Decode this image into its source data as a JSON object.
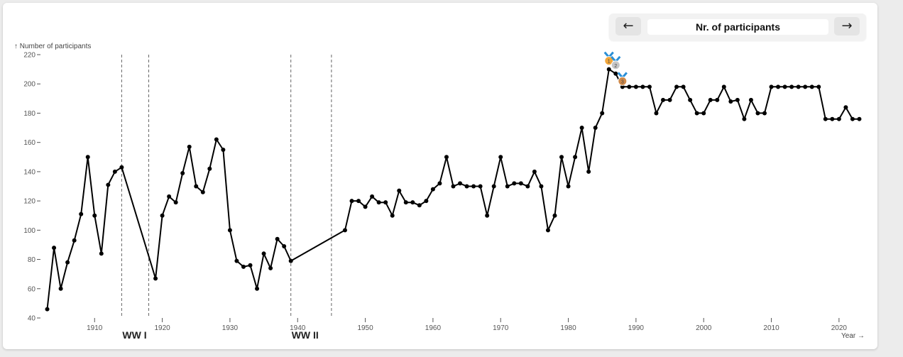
{
  "nav": {
    "prev_icon": "←",
    "next_icon": "→",
    "title": "Nr. of participants"
  },
  "chart_data": {
    "type": "line",
    "ylabel": "↑ Number of participants",
    "xlabel": "Year →",
    "ylim": [
      40,
      220
    ],
    "xlim": [
      1902,
      2024
    ],
    "y_ticks": [
      40,
      60,
      80,
      100,
      120,
      140,
      160,
      180,
      200,
      220
    ],
    "x_ticks": [
      1910,
      1920,
      1930,
      1940,
      1950,
      1960,
      1970,
      1980,
      1990,
      2000,
      2010,
      2020
    ],
    "grid": false,
    "series": [
      {
        "x": [
          1903,
          1904,
          1905,
          1906,
          1907,
          1908,
          1909,
          1910,
          1911,
          1912,
          1913,
          1914,
          1919,
          1920,
          1921,
          1922,
          1923,
          1924,
          1925,
          1926,
          1927,
          1928,
          1929,
          1930,
          1931,
          1932,
          1933,
          1934,
          1935,
          1936,
          1937,
          1938,
          1939,
          1947,
          1948,
          1949,
          1950,
          1951,
          1952,
          1953,
          1954,
          1955,
          1956,
          1957,
          1958,
          1959,
          1960,
          1961,
          1962,
          1963,
          1964,
          1965,
          1966,
          1967,
          1968,
          1969,
          1970,
          1971,
          1972,
          1973,
          1974,
          1975,
          1976,
          1977,
          1978,
          1979,
          1980,
          1981,
          1982,
          1983,
          1984,
          1985,
          1986,
          1987,
          1988,
          1989,
          1990,
          1991,
          1992,
          1993,
          1994,
          1995,
          1996,
          1997,
          1998,
          1999,
          2000,
          2001,
          2002,
          2003,
          2004,
          2005,
          2006,
          2007,
          2008,
          2009,
          2010,
          2011,
          2012,
          2013,
          2014,
          2015,
          2016,
          2017,
          2018,
          2019,
          2020,
          2021,
          2022,
          2023
        ],
        "values": [
          46,
          88,
          60,
          78,
          93,
          111,
          150,
          110,
          84,
          131,
          140,
          143,
          67,
          110,
          123,
          119,
          139,
          157,
          130,
          126,
          142,
          162,
          155,
          100,
          79,
          75,
          76,
          60,
          84,
          74,
          94,
          89,
          79,
          100,
          120,
          120,
          116,
          123,
          119,
          119,
          110,
          127,
          119,
          119,
          117,
          120,
          128,
          132,
          150,
          130,
          132,
          130,
          130,
          130,
          110,
          130,
          150,
          130,
          132,
          132,
          130,
          140,
          130,
          100,
          110,
          150,
          130,
          150,
          170,
          140,
          170,
          180,
          210,
          207,
          198,
          198,
          198,
          198,
          198,
          180,
          189,
          189,
          198,
          198,
          189,
          180,
          180,
          189,
          189,
          198,
          188,
          189,
          176,
          189,
          180,
          180,
          198,
          198,
          198,
          198,
          198,
          198,
          198,
          198,
          176,
          176,
          176,
          184,
          176,
          176
        ]
      }
    ],
    "wars": [
      {
        "label": "WW I",
        "start": 1914,
        "end": 1918
      },
      {
        "label": "WW II",
        "start": 1939,
        "end": 1945
      }
    ],
    "medals": [
      {
        "rank": "1",
        "year": 1986,
        "color": "#f2a73b"
      },
      {
        "rank": "2",
        "year": 1987,
        "color": "#c6c6c6"
      },
      {
        "rank": "3",
        "year": 1988,
        "color": "#d08a4a"
      }
    ]
  }
}
